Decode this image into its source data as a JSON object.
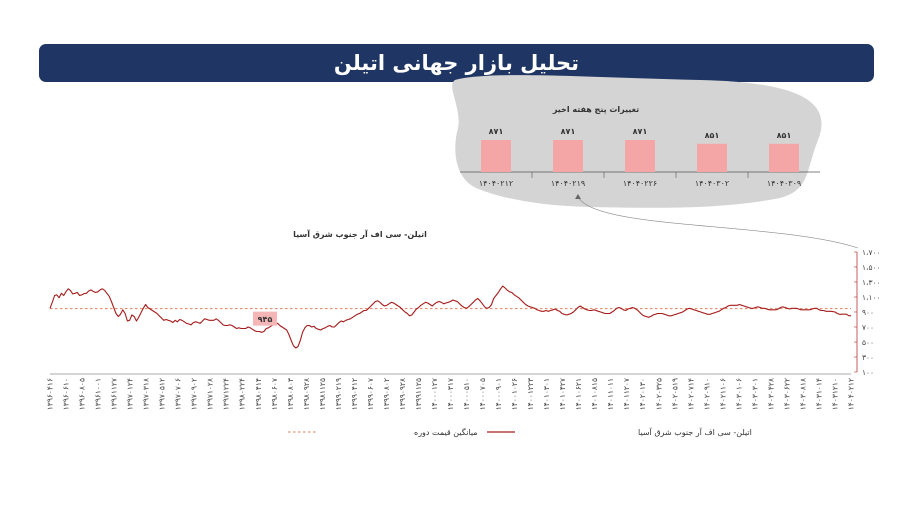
{
  "header": {
    "title": "تحلیل بازار جهانی اتیلن"
  },
  "chart_data": [
    {
      "type": "bar",
      "title": "تغییرات پنج هفته اخیر",
      "categories": [
        "۱۴۰۴۰۲۱۲",
        "۱۴۰۴۰۲۱۹",
        "۱۴۰۴۰۲۲۶",
        "۱۴۰۴۰۳۰۲",
        "۱۴۰۴۰۳۰۹"
      ],
      "values": [
        871,
        871,
        871,
        851,
        851
      ],
      "value_labels": [
        "۸۷۱",
        "۸۷۱",
        "۸۷۱",
        "۸۵۱",
        "۸۵۱"
      ],
      "colors": {
        "bar": "#f4a6a6",
        "panel": "#d4d4d4"
      }
    },
    {
      "type": "line",
      "title": "اتیلن- سی اف آر جنوب شرق آسیا",
      "yticks": [
        100,
        300,
        500,
        700,
        900,
        1100,
        1300,
        1500,
        1700
      ],
      "ytick_labels": [
        "۱۰۰",
        "۳۰۰",
        "۵۰۰",
        "۷۰۰",
        "۹۰۰",
        "۱،۱۰۰",
        "۱،۳۰۰",
        "۱،۵۰۰",
        "۱،۷۰۰"
      ],
      "ylim": [
        100,
        1700
      ],
      "xtick_labels": [
        "۱۳۹۶۰۴۱۶",
        "۱۳۹۶۰۶۱۰",
        "۱۳۹۶۰۸۰۵",
        "۱۳۹۶۱۰۰۱",
        "۱۳۹۶۱۱۲۷",
        "۱۳۹۷۰۱۲۴",
        "۱۳۹۷۰۳۱۸",
        "۱۳۹۷۰۵۱۲",
        "۱۳۹۷۰۷۰۶",
        "۱۳۹۷۰۹۰۲",
        "۱۳۹۷۱۰۲۸",
        "۱۳۹۷۱۲۲۴",
        "۱۳۹۸۰۲۲۴",
        "۱۳۹۸۰۴۱۴",
        "۱۳۹۸۰۶۰۷",
        "۱۳۹۸۰۸۰۳",
        "۱۳۹۸۰۹۲۸",
        "۱۳۹۸۱۱۲۵",
        "۱۳۹۹۰۲۱۹",
        "۱۳۹۹۰۴۱۲",
        "۱۳۹۹۰۶۰۷",
        "۱۳۹۹۰۸۰۲",
        "۱۳۹۹۰۹۲۸",
        "۱۳۹۹۱۱۲۵",
        "۱۴۰۰۰۱۲۷",
        "۱۴۰۰۰۳۱۷",
        "۱۴۰۰۰۵۱۰",
        "۱۴۰۰۰۷۰۵",
        "۱۴۰۰۰۹۰۱",
        "۱۴۰۰۱۰۲۶",
        "۱۴۰۰۱۲۲۳",
        "۱۴۰۱۰۳۰۱",
        "۱۴۰۱۰۴۲۷",
        "۱۴۰۱۰۶۲۱",
        "۱۴۰۱۰۸۱۵",
        "۱۴۰۱۱۰۱۱",
        "۱۴۰۱۱۲۰۷",
        "۱۴۰۲۰۱۳۰",
        "۱۴۰۲۰۳۲۵",
        "۱۴۰۲۰۵۱۹",
        "۱۴۰۲۰۷۱۴",
        "۱۴۰۲۰۹۱۰",
        "۱۴۰۲۱۱۰۶",
        "۱۴۰۳۰۱۰۶",
        "۱۴۰۳۰۳۰۱",
        "۱۴۰۳۰۴۲۸",
        "۱۴۰۳۰۶۲۲",
        "۱۴۰۳۰۸۱۸",
        "۱۴۰۳۱۰۱۴",
        "۱۴۰۳۱۲۱۰",
        "۱۴۰۴۰۲۱۲"
      ],
      "average": 945,
      "average_label": "۹۴۵",
      "series": [
        {
          "name": "اتیلن- سی اف آر جنوب شرق آسیا",
          "color": "#a61c1c",
          "values": [
            950,
            1030,
            1120,
            1130,
            1090,
            1150,
            1120,
            1170,
            1210,
            1185,
            1140,
            1150,
            1160,
            1120,
            1130,
            1145,
            1150,
            1180,
            1195,
            1175,
            1160,
            1170,
            1195,
            1210,
            1190,
            1150,
            1110,
            1040,
            960,
            880,
            840,
            870,
            930,
            880,
            780,
            790,
            860,
            840,
            780,
            830,
            890,
            950,
            1000,
            960,
            940,
            920,
            900,
            880,
            850,
            820,
            790,
            800,
            790,
            780,
            760,
            790,
            770,
            800,
            790,
            770,
            750,
            740,
            730,
            760,
            770,
            760,
            750,
            780,
            810,
            800,
            790,
            790,
            790,
            810,
            790,
            760,
            730,
            720,
            720,
            730,
            720,
            700,
            680,
            690,
            680,
            680,
            680,
            700,
            690,
            670,
            650,
            640,
            640,
            630,
            640,
            680,
            690,
            710,
            730,
            740,
            750,
            720,
            700,
            680,
            660,
            600,
            520,
            450,
            420,
            440,
            520,
            630,
            690,
            720,
            720,
            700,
            710,
            680,
            670,
            660,
            680,
            690,
            710,
            720,
            700,
            700,
            730,
            760,
            780,
            770,
            790,
            800,
            810,
            830,
            850,
            870,
            880,
            900,
            920,
            920,
            950,
            980,
            1010,
            1040,
            1050,
            1030,
            1000,
            980,
            990,
            1010,
            1030,
            1020,
            1000,
            980,
            960,
            930,
            900,
            880,
            850,
            860,
            900,
            940,
            960,
            990,
            1010,
            1030,
            1020,
            1000,
            980,
            1010,
            1030,
            1040,
            1030,
            1010,
            1020,
            1030,
            1040,
            1060,
            1050,
            1040,
            1010,
            980,
            960,
            950,
            970,
            1000,
            1030,
            1060,
            1080,
            1050,
            1010,
            970,
            950,
            960,
            1000,
            1080,
            1120,
            1160,
            1210,
            1245,
            1220,
            1190,
            1170,
            1160,
            1130,
            1110,
            1090,
            1060,
            1030,
            1000,
            980,
            970,
            960,
            950,
            930,
            920,
            910,
            910,
            920,
            910,
            920,
            930,
            940,
            920,
            910,
            880,
            870,
            860,
            870,
            880,
            900,
            930,
            960,
            980,
            960,
            940,
            930,
            920,
            920,
            930,
            920,
            910,
            900,
            890,
            880,
            880,
            880,
            900,
            920,
            950,
            960,
            950,
            930,
            920,
            940,
            950,
            960,
            950,
            930,
            900,
            870,
            850,
            840,
            830,
            840,
            860,
            870,
            880,
            880,
            880,
            870,
            860,
            850,
            850,
            860,
            870,
            880,
            890,
            900,
            920,
            940,
            950,
            940,
            930,
            920,
            910,
            900,
            890,
            880,
            870,
            870,
            880,
            890,
            900,
            910,
            930,
            950,
            960,
            980,
            990,
            990,
            990,
            990,
            1000,
            990,
            980,
            970,
            960,
            950,
            950,
            960,
            970,
            960,
            950,
            950,
            940,
            930,
            930,
            930,
            930,
            940,
            960,
            970,
            960,
            950,
            940,
            950,
            950,
            950,
            940,
            930,
            930,
            930,
            930,
            930,
            940,
            950,
            950,
            930,
            920,
            920,
            910,
            910,
            910,
            905,
            900,
            880,
            870,
            871,
            871,
            871,
            851,
            851
          ]
        },
        {
          "name": "میانگین قیمت دوره",
          "color": "#e37f5b",
          "dashed": true,
          "constant": 945
        }
      ]
    }
  ]
}
